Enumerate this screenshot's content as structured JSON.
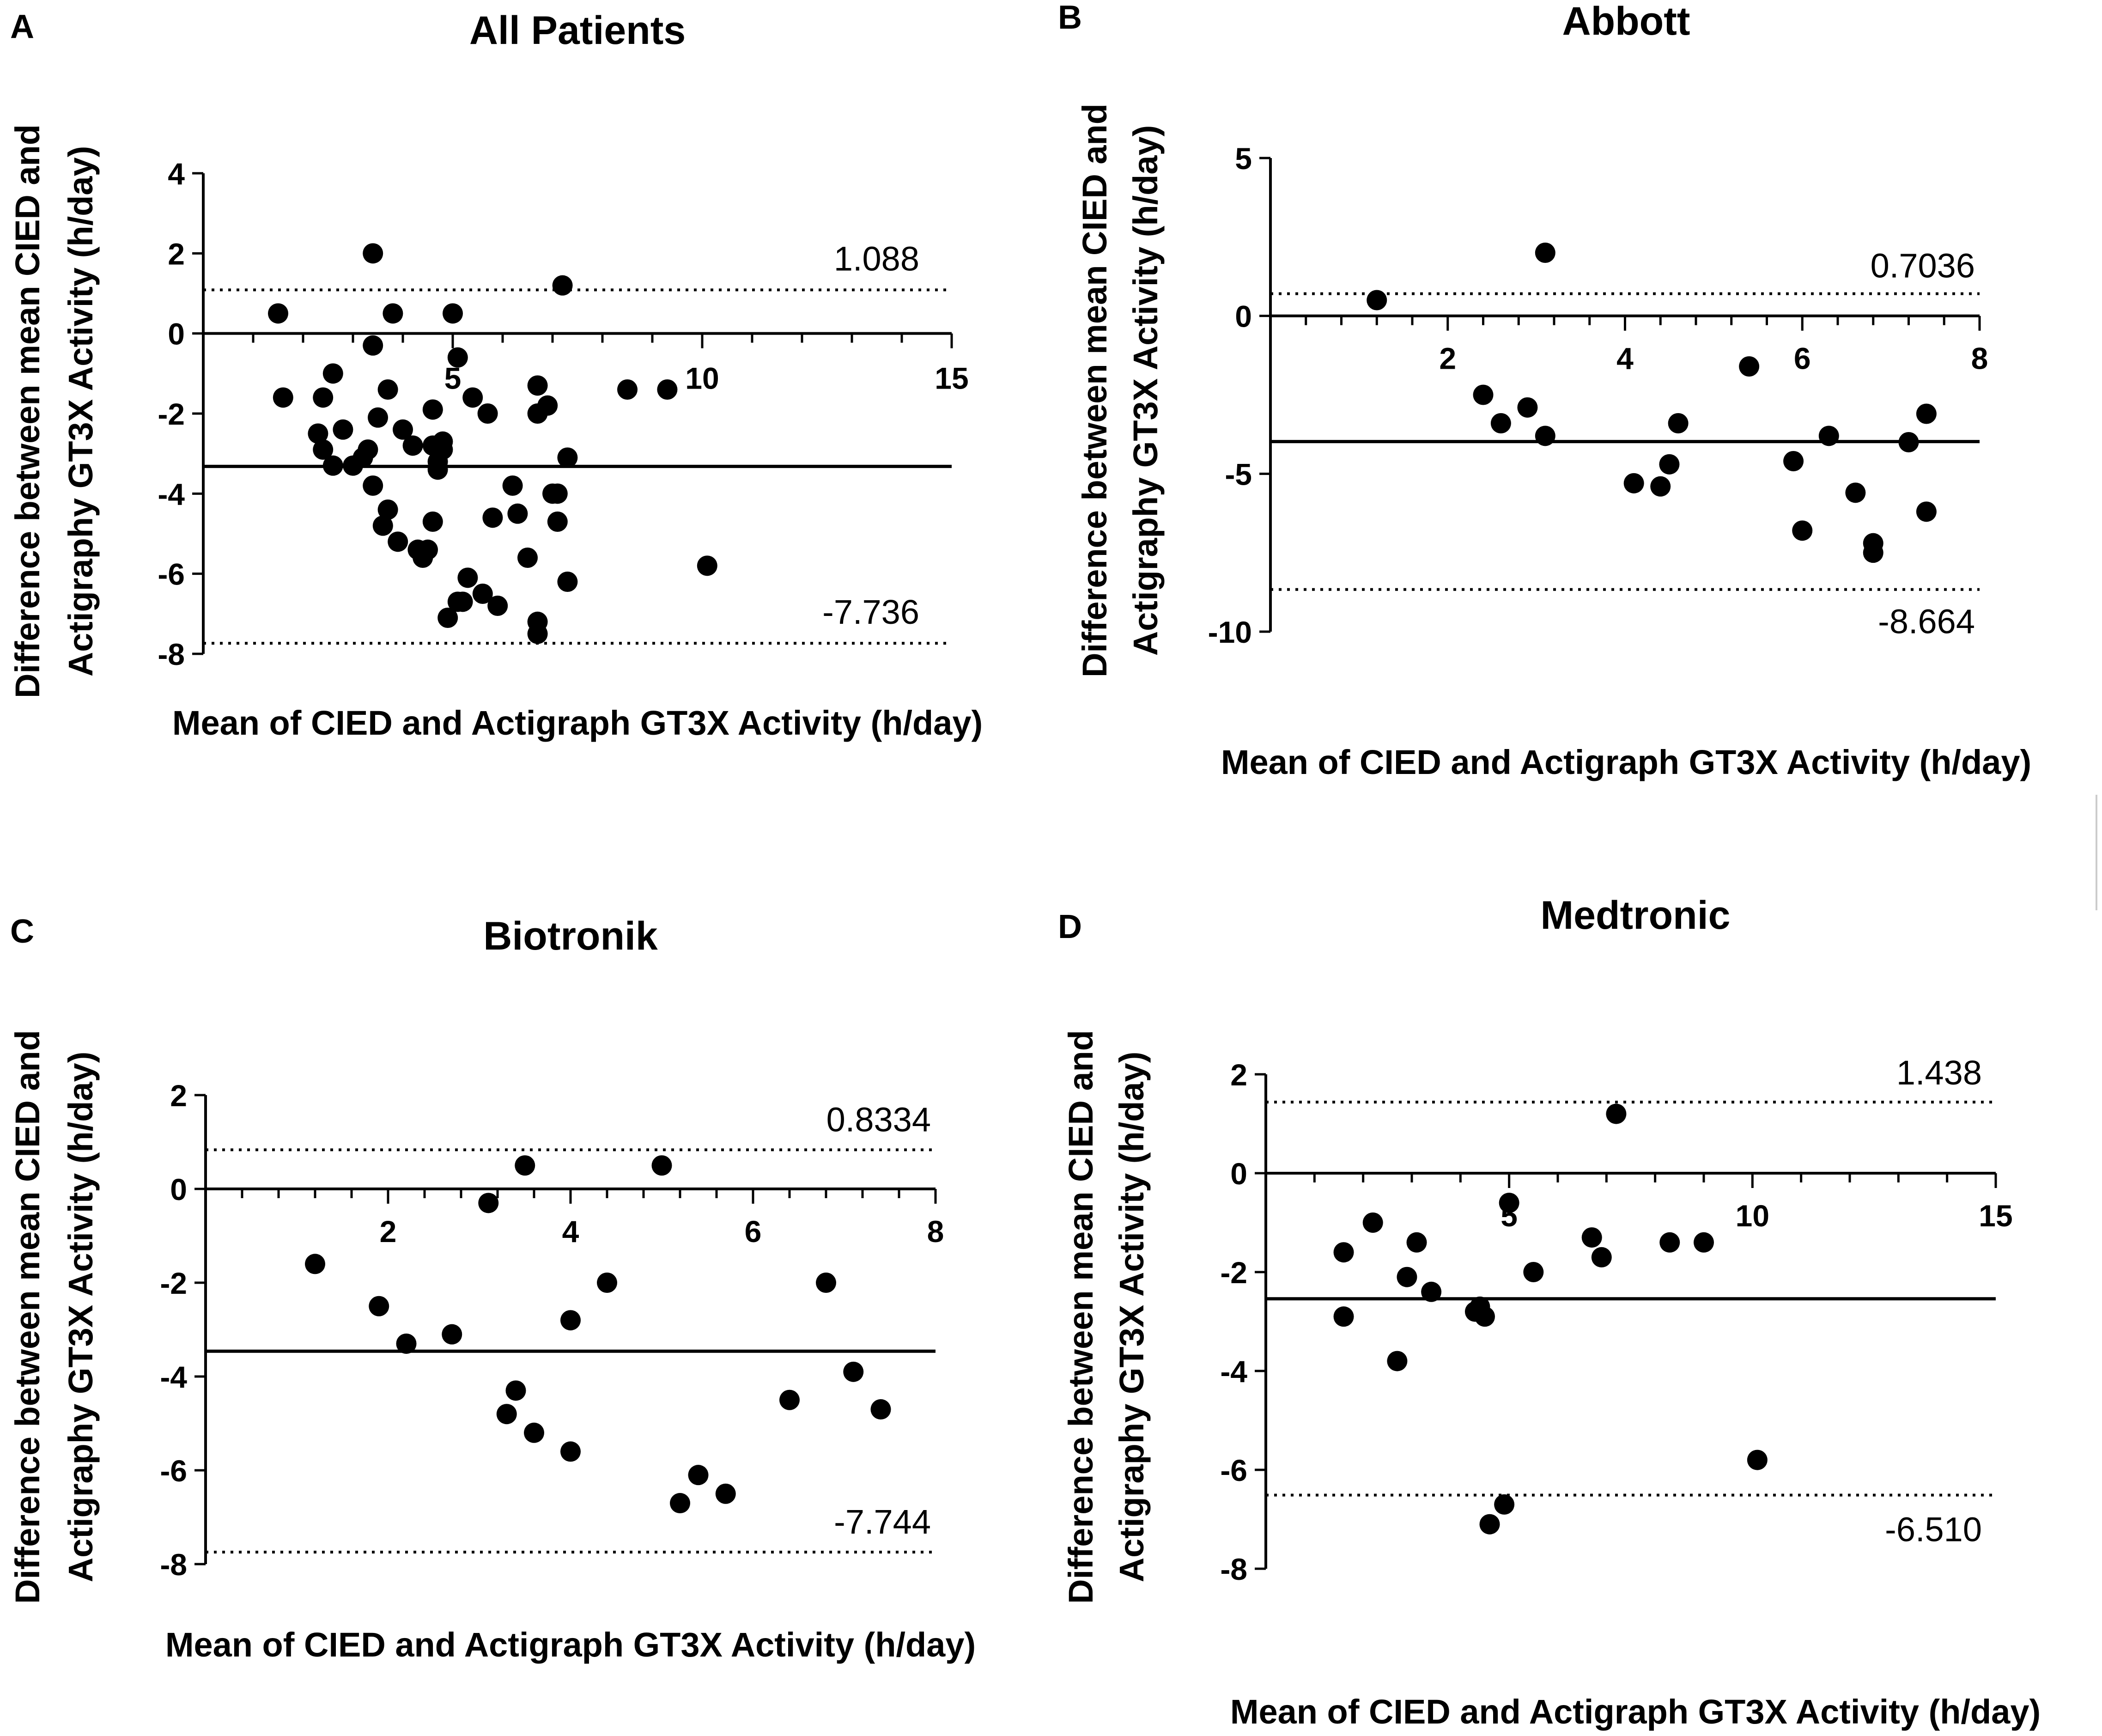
{
  "chart_data": [
    {
      "type": "scatter",
      "panel": "A",
      "title": "All Patients",
      "xlabel": "Mean of CIED and Actigraph GT3X Activity (h/day)",
      "ylabel_line1": "Difference between mean CIED and",
      "ylabel_line2": "Actigraphy GT3X Activity (h/day)",
      "xlim": [
        0,
        15
      ],
      "ylim": [
        -8,
        4
      ],
      "xticks": [
        5,
        10,
        15
      ],
      "yticks": [
        4,
        2,
        0,
        -2,
        -4,
        -6,
        -8
      ],
      "mean_bias": -3.32,
      "upper_loa": 1.088,
      "lower_loa": -7.736,
      "upper_loa_label": "1.088",
      "lower_loa_label": "-7.736",
      "points": [
        [
          1.5,
          0.5
        ],
        [
          1.6,
          -1.6
        ],
        [
          2.3,
          -2.5
        ],
        [
          2.4,
          -1.6
        ],
        [
          2.4,
          -2.9
        ],
        [
          2.6,
          -3.3
        ],
        [
          2.6,
          -1.0
        ],
        [
          2.8,
          -2.4
        ],
        [
          3.0,
          -3.3
        ],
        [
          3.2,
          -3.1
        ],
        [
          3.3,
          -2.9
        ],
        [
          3.4,
          -3.8
        ],
        [
          3.4,
          -0.3
        ],
        [
          3.4,
          2.0
        ],
        [
          3.5,
          -2.1
        ],
        [
          3.6,
          -4.8
        ],
        [
          3.7,
          -4.4
        ],
        [
          3.7,
          -1.4
        ],
        [
          3.8,
          0.5
        ],
        [
          3.9,
          -5.2
        ],
        [
          4.0,
          -2.4
        ],
        [
          4.2,
          -2.8
        ],
        [
          4.3,
          -5.4
        ],
        [
          4.4,
          -5.6
        ],
        [
          4.5,
          -5.4
        ],
        [
          4.6,
          -1.9
        ],
        [
          4.6,
          -2.8
        ],
        [
          4.6,
          -4.7
        ],
        [
          4.7,
          -3.4
        ],
        [
          4.7,
          -3.2
        ],
        [
          4.8,
          -2.7
        ],
        [
          4.8,
          -2.9
        ],
        [
          4.9,
          -7.1
        ],
        [
          5.0,
          0.5
        ],
        [
          5.1,
          -6.7
        ],
        [
          5.1,
          -0.6
        ],
        [
          5.2,
          -6.7
        ],
        [
          5.3,
          -6.1
        ],
        [
          5.4,
          -1.6
        ],
        [
          5.6,
          -6.5
        ],
        [
          5.7,
          -2.0
        ],
        [
          5.8,
          -4.6
        ],
        [
          5.9,
          -6.8
        ],
        [
          6.2,
          -3.8
        ],
        [
          6.3,
          -4.5
        ],
        [
          6.5,
          -5.6
        ],
        [
          6.7,
          -7.2
        ],
        [
          6.7,
          -7.5
        ],
        [
          6.7,
          -1.3
        ],
        [
          6.7,
          -2.0
        ],
        [
          6.9,
          -1.8
        ],
        [
          7.0,
          -4.0
        ],
        [
          7.1,
          -4.0
        ],
        [
          7.1,
          -4.7
        ],
        [
          7.2,
          1.2
        ],
        [
          7.3,
          -3.1
        ],
        [
          7.3,
          -6.2
        ],
        [
          8.5,
          -1.4
        ],
        [
          9.3,
          -1.4
        ],
        [
          10.1,
          -5.8
        ]
      ]
    },
    {
      "type": "scatter",
      "panel": "B",
      "title": "Abbott",
      "xlabel": "Mean of CIED and Actigraph GT3X Activity (h/day)",
      "ylabel_line1": "Difference between mean CIED and",
      "ylabel_line2": "Actigraphy GT3X Activity (h/day)",
      "xlim": [
        0,
        8
      ],
      "ylim": [
        -10,
        5
      ],
      "xticks": [
        2,
        4,
        6,
        8
      ],
      "yticks": [
        5,
        0,
        -5,
        -10
      ],
      "mean_bias": -3.98,
      "upper_loa": 0.7036,
      "lower_loa": -8.664,
      "upper_loa_label": "0.7036",
      "lower_loa_label": "-8.664",
      "points": [
        [
          1.2,
          0.5
        ],
        [
          2.4,
          -2.5
        ],
        [
          2.6,
          -3.4
        ],
        [
          2.9,
          -2.9
        ],
        [
          3.1,
          -3.8
        ],
        [
          3.1,
          2.0
        ],
        [
          4.1,
          -5.3
        ],
        [
          4.4,
          -5.4
        ],
        [
          4.5,
          -4.7
        ],
        [
          4.6,
          -3.4
        ],
        [
          5.4,
          -1.6
        ],
        [
          5.9,
          -4.6
        ],
        [
          6.0,
          -6.8
        ],
        [
          6.3,
          -3.8
        ],
        [
          6.6,
          -5.6
        ],
        [
          6.8,
          -7.2
        ],
        [
          6.8,
          -7.5
        ],
        [
          7.2,
          -4.0
        ],
        [
          7.4,
          -3.1
        ],
        [
          7.4,
          -6.2
        ]
      ]
    },
    {
      "type": "scatter",
      "panel": "C",
      "title": "Biotronik",
      "xlabel": "Mean of CIED and Actigraph GT3X Activity (h/day)",
      "ylabel_line1": "Difference between mean CIED and",
      "ylabel_line2": "Actigraphy GT3X Activity (h/day)",
      "xlim": [
        0,
        8
      ],
      "ylim": [
        -8,
        2
      ],
      "xticks": [
        2,
        4,
        6,
        8
      ],
      "yticks": [
        2,
        0,
        -2,
        -4,
        -6,
        -8
      ],
      "mean_bias": -3.46,
      "upper_loa": 0.8334,
      "lower_loa": -7.744,
      "upper_loa_label": "0.8334",
      "lower_loa_label": "-7.744",
      "points": [
        [
          1.2,
          -1.6
        ],
        [
          1.9,
          -2.5
        ],
        [
          2.2,
          -3.3
        ],
        [
          2.7,
          -3.1
        ],
        [
          3.1,
          -0.3
        ],
        [
          3.3,
          -4.8
        ],
        [
          3.4,
          -4.3
        ],
        [
          3.5,
          0.5
        ],
        [
          3.6,
          -5.2
        ],
        [
          4.0,
          -5.6
        ],
        [
          4.0,
          -2.8
        ],
        [
          4.4,
          -2.0
        ],
        [
          5.0,
          0.5
        ],
        [
          5.2,
          -6.7
        ],
        [
          5.4,
          -6.1
        ],
        [
          5.7,
          -6.5
        ],
        [
          6.4,
          -4.5
        ],
        [
          6.8,
          -2.0
        ],
        [
          7.1,
          -3.9
        ],
        [
          7.4,
          -4.7
        ]
      ]
    },
    {
      "type": "scatter",
      "panel": "D",
      "title": "Medtronic",
      "xlabel": "Mean of CIED and Actigraph GT3X Activity (h/day)",
      "ylabel_line1": "Difference between mean CIED and",
      "ylabel_line2": "Actigraphy GT3X Activity (h/day)",
      "xlim": [
        0,
        15
      ],
      "ylim": [
        -8,
        2
      ],
      "xticks": [
        5,
        10,
        15
      ],
      "yticks": [
        2,
        0,
        -2,
        -4,
        -6,
        -8
      ],
      "mean_bias": -2.54,
      "upper_loa": 1.438,
      "lower_loa": -6.51,
      "upper_loa_label": "1.438",
      "lower_loa_label": "-6.510",
      "points": [
        [
          1.6,
          -1.6
        ],
        [
          1.6,
          -2.9
        ],
        [
          2.2,
          -1.0
        ],
        [
          2.7,
          -3.8
        ],
        [
          2.9,
          -2.1
        ],
        [
          3.1,
          -1.4
        ],
        [
          3.4,
          -2.4
        ],
        [
          4.3,
          -2.8
        ],
        [
          4.4,
          -2.7
        ],
        [
          4.5,
          -2.9
        ],
        [
          4.6,
          -7.1
        ],
        [
          4.9,
          -6.7
        ],
        [
          5.0,
          -0.6
        ],
        [
          5.5,
          -2.0
        ],
        [
          6.7,
          -1.3
        ],
        [
          6.9,
          -1.7
        ],
        [
          7.2,
          1.2
        ],
        [
          8.3,
          -1.4
        ],
        [
          9.0,
          -1.4
        ],
        [
          10.1,
          -5.8
        ]
      ]
    }
  ]
}
